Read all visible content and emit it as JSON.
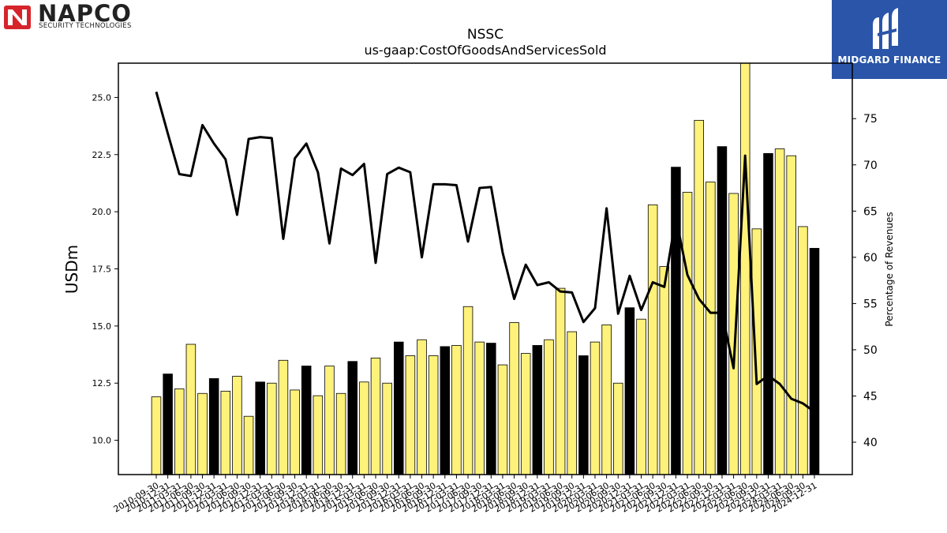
{
  "brand": {
    "left_logo_name": "NAPCO",
    "left_logo_sub": "SECURITY TECHNOLOGIES",
    "right_logo_name": "MIDGARD FINANCE",
    "right_bg": "#2a55a8"
  },
  "chart_data": {
    "type": "bar",
    "title": "NSSC",
    "subtitle": "us-gaap:CostOfGoodsAndServicesSold",
    "ylabel": "USDm",
    "y2label": "Percentage of Revenues",
    "ylim": [
      8.5,
      26.5
    ],
    "y2lim": [
      36.5,
      81
    ],
    "yticks": [
      "10.0",
      "12.5",
      "15.0",
      "17.5",
      "20.0",
      "22.5",
      "25.0"
    ],
    "y2ticks": [
      "40",
      "45",
      "50",
      "55",
      "60",
      "65",
      "70",
      "75"
    ],
    "bar_colors": {
      "fy": "#000000",
      "quarter": "#fff27a"
    },
    "categories": [
      "2010-09-30",
      "2010-12-31",
      "2011-03-31",
      "2011-06-30",
      "2011-09-30",
      "2011-12-31",
      "2012-03-31",
      "2012-06-30",
      "2012-09-30",
      "2012-12-31",
      "2013-03-31",
      "2013-06-30",
      "2013-09-30",
      "2013-12-31",
      "2014-03-31",
      "2014-06-30",
      "2014-09-30",
      "2014-12-31",
      "2015-03-31",
      "2015-06-30",
      "2015-09-30",
      "2015-12-31",
      "2016-03-31",
      "2016-06-30",
      "2016-09-30",
      "2016-12-31",
      "2017-03-31",
      "2017-06-30",
      "2017-09-30",
      "2017-12-31",
      "2018-03-31",
      "2018-06-30",
      "2018-09-30",
      "2018-12-31",
      "2019-03-31",
      "2019-06-30",
      "2019-09-30",
      "2019-12-31",
      "2020-03-31",
      "2020-06-30",
      "2020-09-30",
      "2020-12-31",
      "2021-03-31",
      "2021-06-30",
      "2021-09-30",
      "2021-12-31",
      "2022-03-31",
      "2022-06-30",
      "2022-09-30",
      "2022-12-31",
      "2023-03-31",
      "2023-06-30",
      "2023-09-30",
      "2023-12-31",
      "2024-03-31",
      "2024-06-30",
      "2024-09-30",
      "2024-12-31"
    ],
    "series": [
      {
        "kind": "bar",
        "values": [
          11.9,
          12.9,
          12.25,
          14.2,
          12.05,
          12.7,
          12.15,
          12.8,
          11.05,
          12.55,
          12.5,
          13.5,
          12.2,
          13.25,
          11.95,
          13.25,
          12.05,
          13.45,
          12.55,
          13.6,
          12.5,
          14.3,
          13.7,
          14.4,
          13.7,
          14.1,
          14.15,
          15.85,
          14.3,
          14.25,
          13.3,
          15.15,
          13.8,
          14.15,
          14.4,
          16.65,
          14.75,
          13.7,
          14.3,
          15.05,
          12.5,
          15.8,
          15.3,
          20.3,
          17.6,
          21.95,
          20.85,
          24.0,
          21.3,
          22.85,
          20.8,
          26.7,
          19.25,
          22.55,
          22.75,
          22.45,
          19.35,
          18.4
        ],
        "fy_flags": [
          0,
          1,
          0,
          0,
          0,
          1,
          0,
          0,
          0,
          1,
          0,
          0,
          0,
          1,
          0,
          0,
          0,
          1,
          0,
          0,
          0,
          1,
          0,
          0,
          0,
          1,
          0,
          0,
          0,
          1,
          0,
          0,
          0,
          1,
          0,
          0,
          0,
          1,
          0,
          0,
          0,
          1,
          0,
          0,
          0,
          1,
          0,
          0,
          0,
          1,
          0,
          0,
          0,
          1,
          0,
          0,
          0,
          1
        ]
      },
      {
        "kind": "line",
        "axis": "right",
        "color": "#000000",
        "values": [
          77.9,
          73.4,
          69.0,
          68.8,
          74.3,
          72.3,
          70.6,
          64.6,
          72.8,
          73.0,
          72.9,
          62.0,
          70.7,
          72.3,
          69.2,
          61.5,
          69.6,
          68.9,
          70.1,
          59.4,
          69.0,
          69.7,
          69.2,
          60.0,
          67.9,
          67.9,
          67.8,
          61.7,
          67.5,
          67.6,
          60.5,
          55.5,
          59.2,
          57.0,
          57.3,
          56.3,
          56.2,
          53.0,
          54.5,
          65.3,
          53.9,
          58.0,
          54.3,
          57.3,
          56.8,
          64.3,
          58.1,
          55.5,
          54.0,
          54.0,
          48.0,
          71.0,
          46.3,
          47.2,
          46.3,
          44.7,
          44.2,
          43.3
        ]
      }
    ]
  }
}
